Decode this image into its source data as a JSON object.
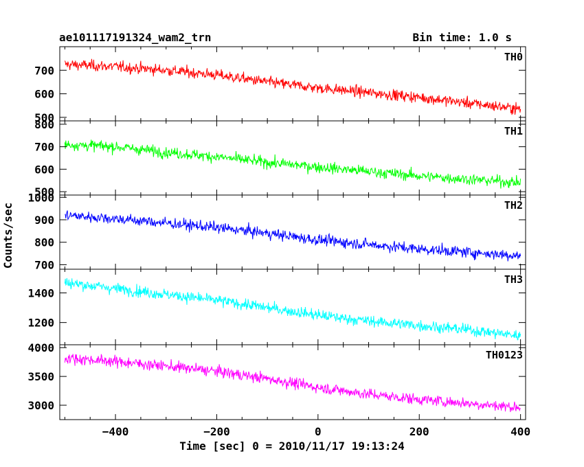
{
  "chart_data": {
    "type": "line",
    "title": "ae101117191324_wam2_trn",
    "subtitle": "Bin time: 1.0 s",
    "xlabel": "Time [sec] 0 = 2010/11/17 19:13:24",
    "ylabel": "Counts/sec",
    "xlim": [
      -510,
      410
    ],
    "xticks": [
      -400,
      -200,
      0,
      200,
      400
    ],
    "bin_time_s": 1.0,
    "panels": [
      {
        "name": "TH0",
        "color": "#ff0000",
        "ylim": [
          485,
          800
        ],
        "yticks": [
          500,
          600,
          700
        ],
        "x": [
          -500,
          -400,
          -300,
          -200,
          -100,
          0,
          100,
          200,
          300,
          400
        ],
        "y": [
          725,
          715,
          700,
          680,
          650,
          625,
          605,
          585,
          560,
          535
        ]
      },
      {
        "name": "TH1",
        "color": "#00ff00",
        "ylim": [
          485,
          815
        ],
        "yticks": [
          500,
          600,
          700,
          800
        ],
        "x": [
          -500,
          -400,
          -300,
          -200,
          -100,
          0,
          100,
          200,
          300,
          400
        ],
        "y": [
          710,
          700,
          675,
          655,
          630,
          610,
          590,
          570,
          555,
          540
        ]
      },
      {
        "name": "TH2",
        "color": "#0000ff",
        "ylim": [
          680,
          1010
        ],
        "yticks": [
          700,
          800,
          900,
          1000
        ],
        "x": [
          -500,
          -400,
          -300,
          -200,
          -100,
          0,
          100,
          200,
          300,
          400
        ],
        "y": [
          920,
          905,
          885,
          865,
          840,
          810,
          790,
          770,
          755,
          740
        ]
      },
      {
        "name": "TH3",
        "color": "#00ffff",
        "ylim": [
          1050,
          1560
        ],
        "yticks": [
          1200,
          1400
        ],
        "x": [
          -500,
          -400,
          -300,
          -200,
          -100,
          0,
          100,
          200,
          300,
          400
        ],
        "y": [
          1470,
          1430,
          1390,
          1350,
          1300,
          1250,
          1210,
          1180,
          1150,
          1110
        ]
      },
      {
        "name": "TH0123",
        "color": "#ff00ff",
        "ylim": [
          2750,
          4050
        ],
        "yticks": [
          3000,
          3500,
          4000
        ],
        "x": [
          -500,
          -400,
          -300,
          -200,
          -100,
          0,
          100,
          200,
          300,
          400
        ],
        "y": [
          3820,
          3760,
          3680,
          3590,
          3460,
          3310,
          3190,
          3100,
          3030,
          2960
        ]
      }
    ]
  }
}
